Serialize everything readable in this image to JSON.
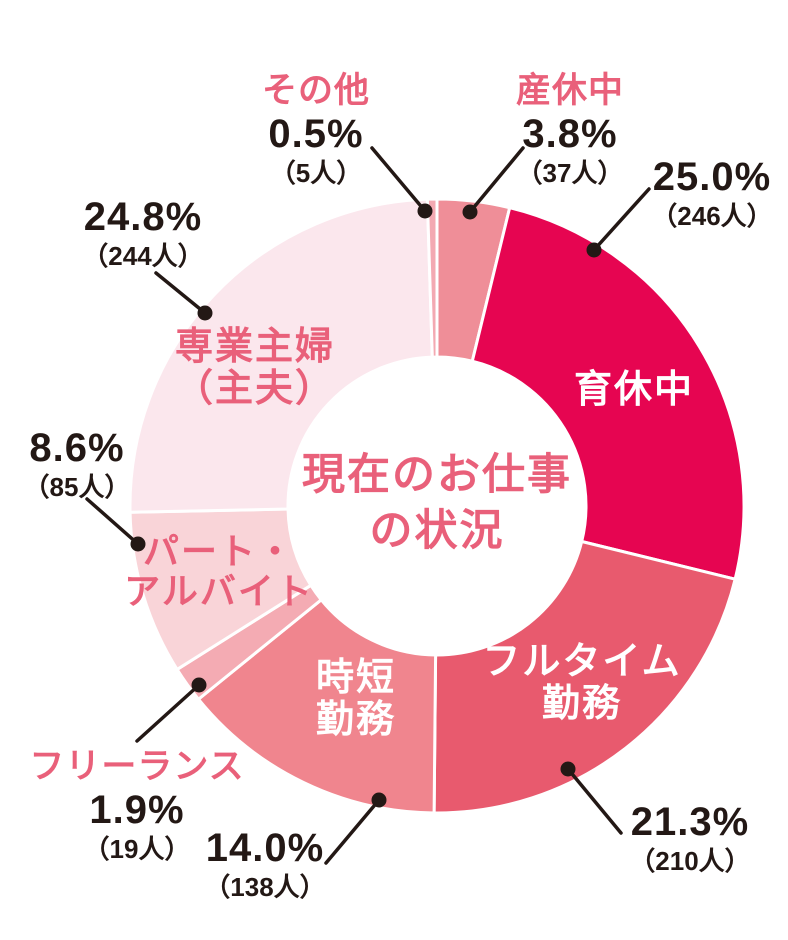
{
  "chart_data": {
    "type": "pie",
    "subtype": "donut",
    "title": "現在のお仕事の状況",
    "title_lines": [
      "現在のお仕事",
      "の状況"
    ],
    "unit": "人",
    "legend_position": "none",
    "colors": {
      "category_text": "#E9607A",
      "number_text": "#231815",
      "leader_line": "#231815",
      "segment_divider": "#FFFFFF",
      "background": "#FFFFFF"
    },
    "segments": [
      {
        "id": "sankyuu",
        "label": "産休中",
        "percent": 3.8,
        "count": 37,
        "percent_label": "3.8%",
        "count_label": "（37人）",
        "color": "#EF8E98"
      },
      {
        "id": "ikukyuu",
        "label": "育休中",
        "percent": 25.0,
        "count": 246,
        "percent_label": "25.0%",
        "count_label": "（246人）",
        "color": "#E60551"
      },
      {
        "id": "fulltime",
        "label": "フルタイム勤務",
        "label_lines": [
          "フルタイム",
          "勤務"
        ],
        "percent": 21.3,
        "count": 210,
        "percent_label": "21.3%",
        "count_label": "（210人）",
        "color": "#E85A6E"
      },
      {
        "id": "jitan",
        "label": "時短勤務",
        "label_lines": [
          "時短",
          "勤務"
        ],
        "percent": 14.0,
        "count": 138,
        "percent_label": "14.0%",
        "count_label": "（138人）",
        "color": "#F0858E"
      },
      {
        "id": "freelance",
        "label": "フリーランス",
        "percent": 1.9,
        "count": 19,
        "percent_label": "1.9%",
        "count_label": "（19人）",
        "color": "#F4ABB3"
      },
      {
        "id": "part",
        "label": "パート・アルバイト",
        "label_lines": [
          "パート・",
          "アルバイト"
        ],
        "percent": 8.6,
        "count": 85,
        "percent_label": "8.6%",
        "count_label": "（85人）",
        "color": "#F9D4D8"
      },
      {
        "id": "shufu",
        "label": "専業主婦（主夫）",
        "label_lines": [
          "専業主婦",
          "（主夫）"
        ],
        "percent": 24.8,
        "count": 244,
        "percent_label": "24.8%",
        "count_label": "（244人）",
        "color": "#FBE7ED"
      },
      {
        "id": "other",
        "label": "その他",
        "percent": 0.5,
        "count": 5,
        "percent_label": "0.5%",
        "count_label": "（5人）",
        "color": "#F3A9B2"
      }
    ]
  }
}
